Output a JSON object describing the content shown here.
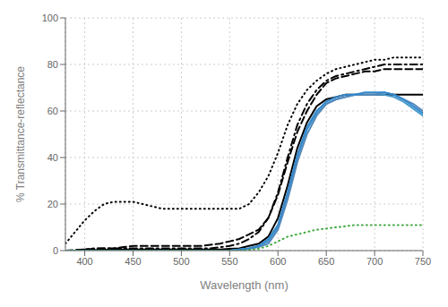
{
  "chart_data": {
    "type": "line",
    "xlabel": "Wavelength (nm)",
    "ylabel": "% Transmittance-reflectance",
    "xlim": [
      380,
      750
    ],
    "ylim": [
      0,
      100
    ],
    "xticks": [
      400,
      450,
      500,
      550,
      600,
      650,
      700,
      750
    ],
    "yticks": [
      0,
      20,
      40,
      60,
      80,
      100
    ],
    "grid": true,
    "x": [
      380,
      390,
      400,
      410,
      420,
      430,
      440,
      450,
      460,
      470,
      480,
      490,
      500,
      510,
      520,
      530,
      540,
      550,
      560,
      570,
      580,
      590,
      600,
      610,
      620,
      630,
      640,
      650,
      660,
      670,
      680,
      690,
      700,
      710,
      720,
      730,
      740,
      750
    ],
    "series": [
      {
        "color": "#000000",
        "line_style": "dotted",
        "values": [
          3,
          8,
          13,
          17,
          20,
          21,
          21,
          21,
          20,
          19,
          18,
          18,
          18,
          18,
          18,
          18,
          18,
          18,
          18,
          20,
          25,
          32,
          42,
          54,
          63,
          69,
          73,
          76,
          78,
          79,
          80,
          81,
          82,
          82,
          83,
          83,
          83,
          83
        ]
      },
      {
        "color": "#000000",
        "line_style": "dashdot",
        "values": [
          0,
          0,
          0.5,
          1,
          1,
          1,
          1,
          1,
          1,
          1,
          1,
          1,
          1,
          1,
          1,
          1,
          1.5,
          2,
          3,
          5,
          8,
          14,
          25,
          40,
          54,
          63,
          69,
          73,
          75,
          76,
          77,
          78,
          79,
          80,
          80,
          80,
          80,
          80
        ]
      },
      {
        "color": "#000000",
        "line_style": "dashed",
        "values": [
          0,
          0.3,
          0.5,
          0.8,
          1,
          1,
          1.5,
          2,
          2,
          2,
          2,
          2,
          2,
          2,
          2,
          2.5,
          3,
          4,
          5,
          7,
          9,
          14,
          24,
          38,
          51,
          60,
          67,
          72,
          74,
          75,
          76,
          77,
          77,
          78,
          78,
          78,
          78,
          78
        ]
      },
      {
        "color": "#000000",
        "line_style": "solid",
        "values": [
          0,
          0,
          0.2,
          0.3,
          0.4,
          0.5,
          0.5,
          0.5,
          0.5,
          0.5,
          0.5,
          0.5,
          0.5,
          0.5,
          0.5,
          0.5,
          0.5,
          0.8,
          1,
          2,
          3,
          6,
          14,
          28,
          44,
          55,
          62,
          65,
          66,
          67,
          67,
          67,
          67,
          67,
          67,
          67,
          67,
          67
        ]
      },
      {
        "color": "#4499cc",
        "line_style": "solid",
        "values": [
          0,
          0,
          0,
          0,
          0,
          0,
          0,
          0,
          0,
          0,
          0,
          0,
          0,
          0,
          0,
          0,
          0,
          0,
          0.5,
          1,
          2,
          4,
          10,
          24,
          40,
          52,
          59,
          63,
          65,
          66,
          67,
          67,
          67,
          67,
          66,
          64,
          61,
          58
        ]
      },
      {
        "color": "#5588bb",
        "line_style": "solid",
        "values": [
          0,
          0,
          0,
          0,
          0,
          0,
          0,
          0,
          0,
          0,
          0,
          0,
          0,
          0,
          0,
          0,
          0,
          0,
          0.3,
          0.8,
          1.5,
          3,
          9,
          22,
          38,
          50,
          58,
          63,
          65,
          66,
          67,
          67,
          67,
          68,
          67,
          65,
          63,
          60
        ]
      },
      {
        "color": "#3388cc",
        "line_style": "solid",
        "values": [
          0,
          0,
          0,
          0,
          0,
          0,
          0,
          0,
          0,
          0,
          0,
          0,
          0,
          0,
          0,
          0,
          0,
          0,
          0.5,
          1,
          2,
          5,
          11,
          25,
          41,
          53,
          60,
          64,
          66,
          67,
          67,
          68,
          68,
          68,
          67,
          65,
          62,
          59
        ]
      },
      {
        "color": "#44aa44",
        "line_style": "dotted",
        "values": [
          0,
          0,
          0,
          0,
          0,
          0,
          0,
          0,
          0,
          0,
          0,
          0,
          0,
          0,
          0,
          0,
          0,
          0,
          0,
          0.3,
          0.8,
          2,
          4,
          6,
          7,
          8,
          9,
          9.5,
          10,
          10.5,
          11,
          11,
          11,
          11,
          11,
          11,
          11,
          11
        ]
      }
    ]
  }
}
